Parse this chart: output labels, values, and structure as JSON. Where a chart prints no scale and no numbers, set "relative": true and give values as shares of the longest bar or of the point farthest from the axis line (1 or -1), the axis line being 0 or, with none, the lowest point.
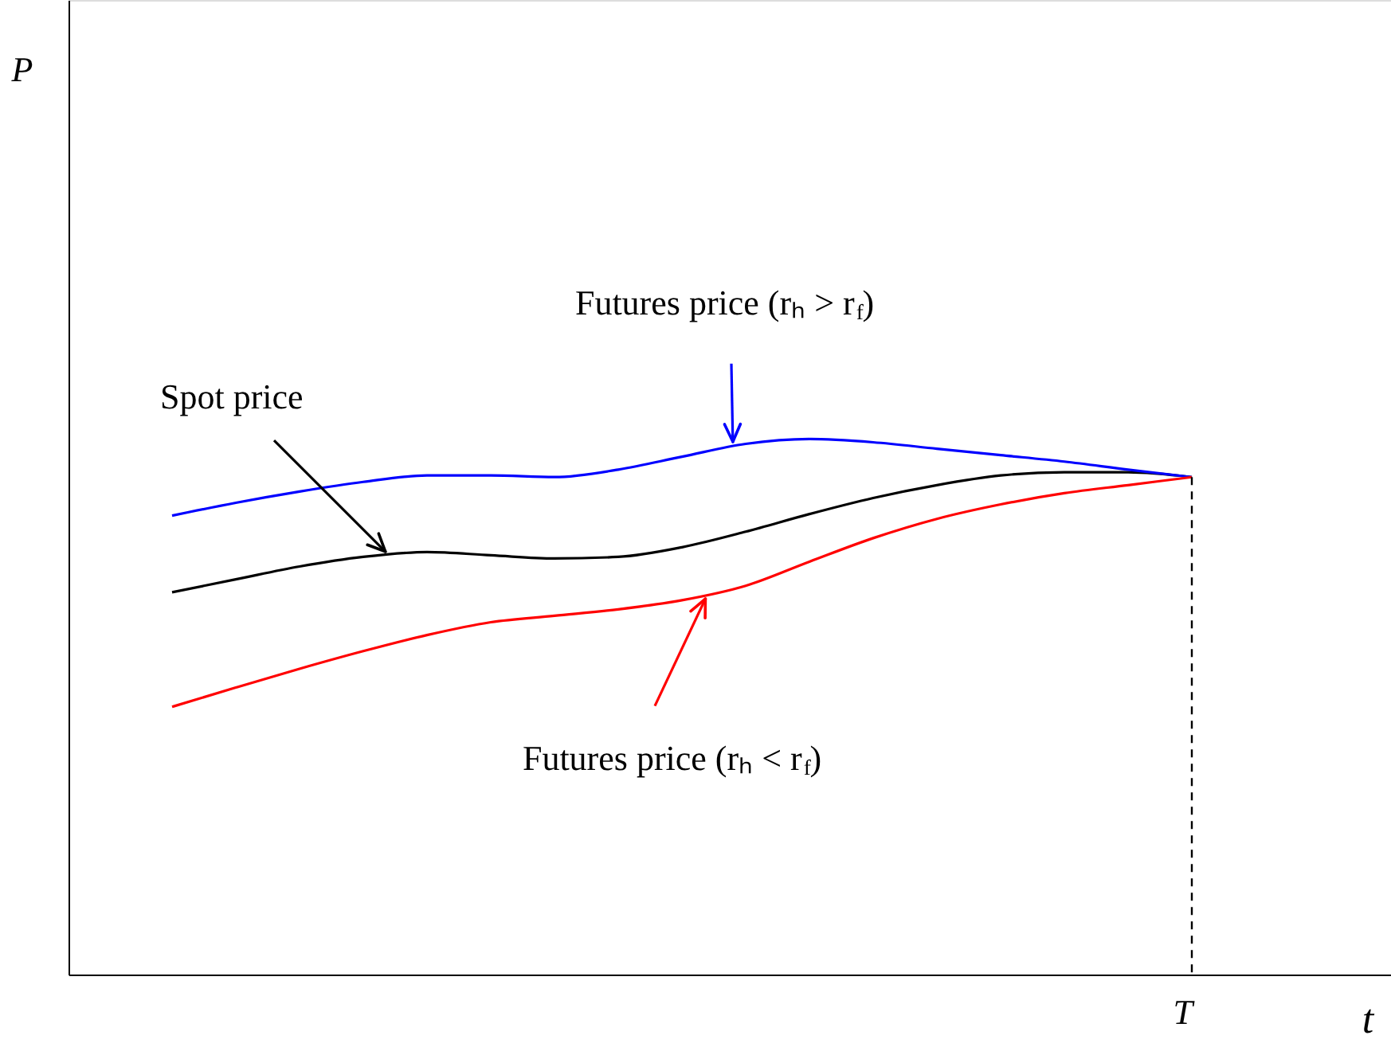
{
  "chart_data": {
    "type": "line",
    "relative": true,
    "xlabel": "t",
    "grid": false,
    "marker": "none",
    "line_style": "solid",
    "categories": [
      null,
      null,
      null,
      null,
      null,
      null,
      null,
      null,
      null,
      null,
      null,
      null,
      null,
      null,
      null,
      null,
      null
    ],
    "series": [
      {
        "color": "#000000",
        "values": [
          0.714,
          0.738,
          0.762,
          0.78,
          0.789,
          0.783,
          0.777,
          0.78,
          0.798,
          0.827,
          0.86,
          0.89,
          0.914,
          0.932,
          0.938,
          0.938,
          0.929
        ]
      },
      {
        "color": "#0000ff",
        "values": [
          0.857,
          0.881,
          0.902,
          0.92,
          0.932,
          0.932,
          0.929,
          0.943,
          0.967,
          0.991,
          1.0,
          0.994,
          0.982,
          0.97,
          0.958,
          0.943,
          0.929
        ]
      },
      {
        "color": "#ff0000",
        "values": [
          0.5,
          0.536,
          0.571,
          0.604,
          0.634,
          0.658,
          0.67,
          0.682,
          0.699,
          0.726,
          0.771,
          0.815,
          0.851,
          0.878,
          0.899,
          0.914,
          0.929
        ]
      }
    ],
    "annotations": [
      "Spot price",
      "Futures price (rₕ > r$_{f}$)",
      "Futures price (rₕ < r$_{f}$)",
      "T",
      "P"
    ]
  }
}
